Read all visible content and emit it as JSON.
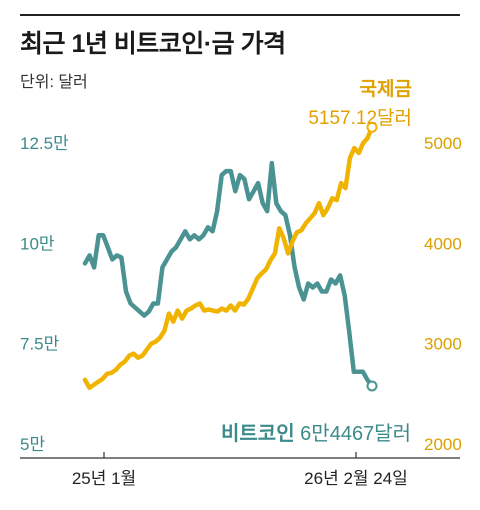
{
  "title": "최근 1년 비트코인·금 가격",
  "unit_label": "단위: 달러",
  "colors": {
    "bitcoin": "#4b9393",
    "gold": "#f0b400",
    "axis": "#333333"
  },
  "chart_data": {
    "type": "line",
    "x_ticks": [
      "25년 1월",
      "26년 2월 24일"
    ],
    "y_left": {
      "ticks": [
        "12.5만",
        "10만",
        "7.5만",
        "5만"
      ],
      "values": [
        125000,
        100000,
        75000,
        50000
      ],
      "range": [
        50000,
        125000
      ]
    },
    "y_right": {
      "ticks": [
        "5000",
        "4000",
        "3000",
        "2000"
      ],
      "values": [
        5000,
        4000,
        3000,
        2000
      ],
      "range": [
        2000,
        5000
      ]
    },
    "series": [
      {
        "name": "비트코인",
        "axis": "left",
        "end_label": "6만4467달러",
        "values": [
          95000,
          97000,
          94000,
          102000,
          102000,
          99000,
          96000,
          97000,
          96500,
          88000,
          85000,
          84000,
          83000,
          82000,
          83000,
          85000,
          85000,
          94000,
          96000,
          98000,
          99000,
          101000,
          103000,
          101000,
          102000,
          101000,
          102000,
          104000,
          103000,
          108000,
          117000,
          118000,
          118000,
          113000,
          117000,
          116000,
          111000,
          113000,
          115000,
          110000,
          108000,
          120000,
          110000,
          108000,
          107000,
          102000,
          94000,
          89000,
          86000,
          90000,
          89000,
          90000,
          88000,
          88000,
          91000,
          90000,
          92000,
          87000,
          78000,
          68000,
          68000,
          68000,
          66000,
          64467
        ]
      },
      {
        "name": "국제금",
        "axis": "right",
        "end_label": "5157.12달러",
        "values": [
          2640,
          2560,
          2590,
          2620,
          2650,
          2700,
          2710,
          2740,
          2790,
          2820,
          2880,
          2900,
          2860,
          2880,
          2940,
          3000,
          3020,
          3060,
          3130,
          3300,
          3220,
          3330,
          3250,
          3330,
          3350,
          3380,
          3400,
          3330,
          3340,
          3330,
          3320,
          3350,
          3330,
          3380,
          3330,
          3400,
          3390,
          3450,
          3550,
          3650,
          3700,
          3740,
          3830,
          3900,
          4150,
          4050,
          3900,
          4020,
          4110,
          4130,
          4200,
          4250,
          4300,
          4400,
          4280,
          4350,
          4450,
          4430,
          4600,
          4550,
          4850,
          4950,
          4900,
          5000,
          5050,
          5157.12
        ]
      }
    ],
    "grid": false,
    "legend": "direct-labels"
  }
}
